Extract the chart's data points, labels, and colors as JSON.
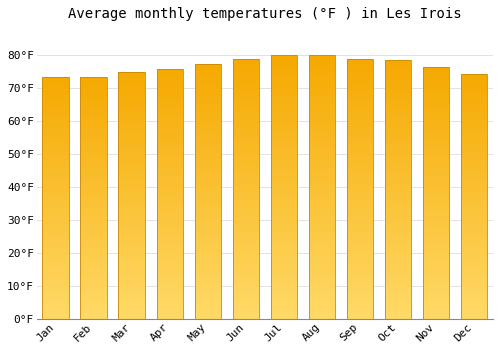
{
  "title": "Average monthly temperatures (°F ) in Les Irois",
  "months": [
    "Jan",
    "Feb",
    "Mar",
    "Apr",
    "May",
    "Jun",
    "Jul",
    "Aug",
    "Sep",
    "Oct",
    "Nov",
    "Dec"
  ],
  "values": [
    73.5,
    73.5,
    75.0,
    76.0,
    77.5,
    79.0,
    80.0,
    80.0,
    79.0,
    78.5,
    76.5,
    74.5
  ],
  "bar_color_top": "#F5A800",
  "bar_color_bottom": "#FFD966",
  "bar_edge_color": "#C8890A",
  "ylim": [
    0,
    88
  ],
  "yticks": [
    0,
    10,
    20,
    30,
    40,
    50,
    60,
    70,
    80
  ],
  "ytick_labels": [
    "0°F",
    "10°F",
    "20°F",
    "30°F",
    "40°F",
    "50°F",
    "60°F",
    "70°F",
    "80°F"
  ],
  "background_color": "#FFFFFF",
  "plot_bg_color": "#FFFFFF",
  "grid_color": "#DDDDDD",
  "title_fontsize": 10,
  "tick_fontsize": 8,
  "font_family": "monospace"
}
